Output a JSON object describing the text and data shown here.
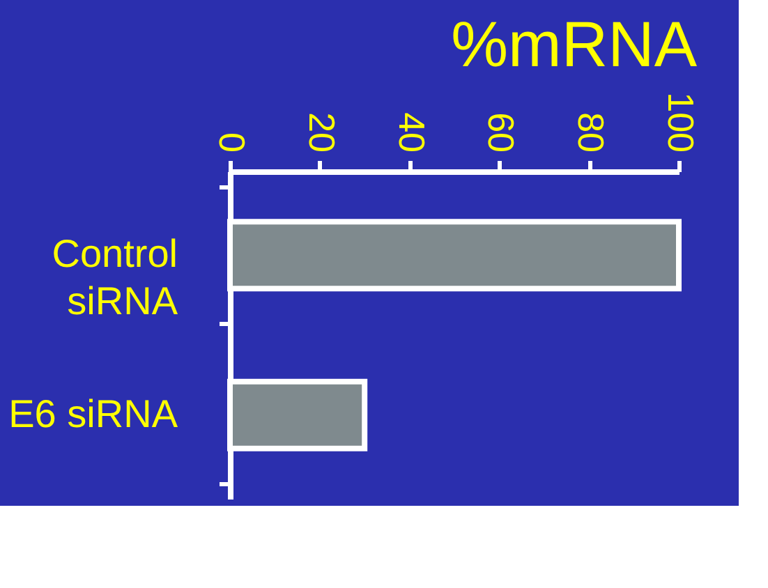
{
  "chart_data": {
    "type": "bar",
    "orientation": "horizontal",
    "title": "%mRNA",
    "categories": [
      "Control siRNA",
      "E6 siRNA"
    ],
    "values": [
      100,
      30
    ],
    "color": "#7f8a8e",
    "xlim": [
      0,
      100
    ],
    "xticks": [
      0,
      20,
      40,
      60,
      80,
      100
    ],
    "grid": false
  }
}
